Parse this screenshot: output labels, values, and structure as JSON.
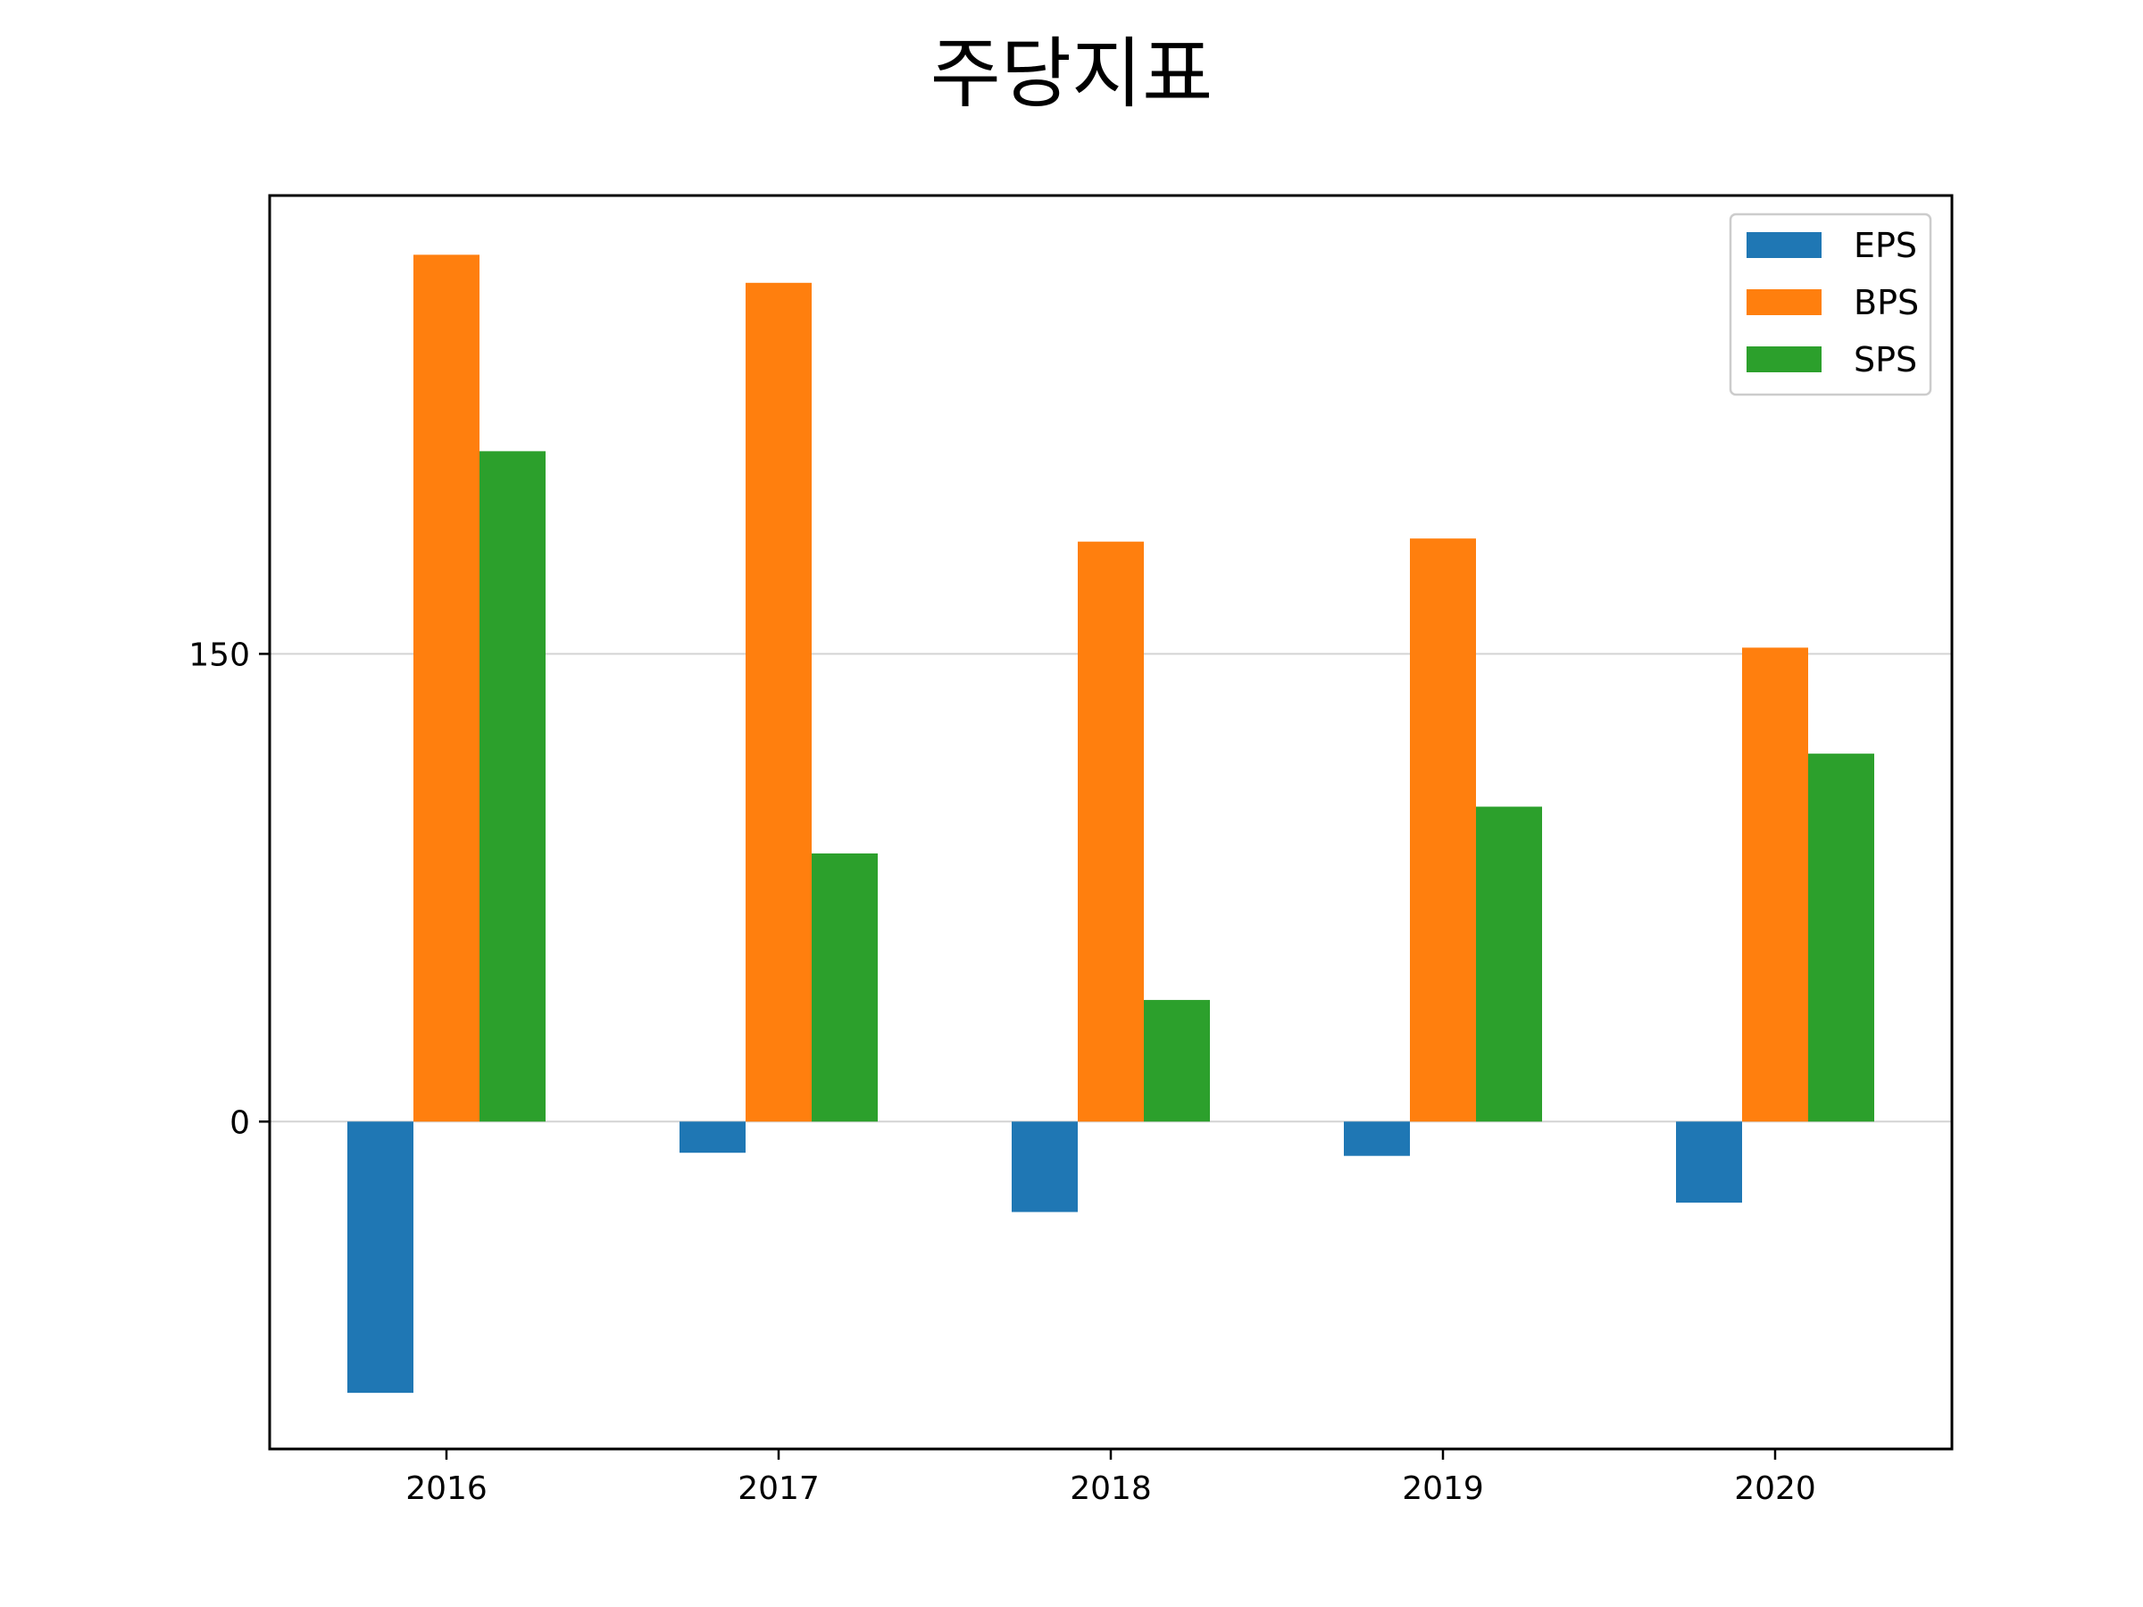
{
  "chart_data": {
    "type": "bar",
    "title": "주당지표",
    "categories": [
      "2016",
      "2017",
      "2018",
      "2019",
      "2020"
    ],
    "series": [
      {
        "name": "EPS",
        "color": "#1f77b4",
        "values": [
          -87,
          -10,
          -29,
          -11,
          -26
        ]
      },
      {
        "name": "BPS",
        "color": "#ff7f0e",
        "values": [
          278,
          269,
          186,
          187,
          152
        ]
      },
      {
        "name": "SPS",
        "color": "#2ca02c",
        "values": [
          215,
          86,
          39,
          101,
          118
        ]
      }
    ],
    "yticks": [
      0,
      150
    ],
    "ylim": [
      -105,
      297
    ],
    "grid": "horizontal",
    "legend_position": "top-right",
    "xlabel": "",
    "ylabel": ""
  }
}
